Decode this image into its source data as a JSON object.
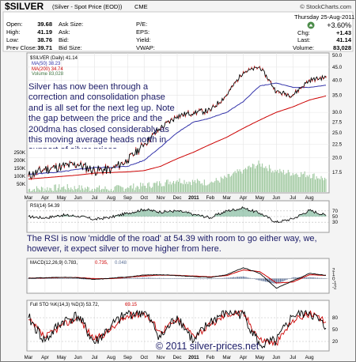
{
  "header": {
    "symbol_title": "$SILVER",
    "symbol_desc": "(Silver - Spot Price (EOD))",
    "exchange": "CME",
    "brand": "© StockCharts.com",
    "date": "Thursday  25-Aug-2011",
    "change_pct": "+3.60%",
    "quote_labels": {
      "open": "Open:",
      "high": "High:",
      "low": "Low:",
      "prev_close": "Prev Close:",
      "ask_size": "Ask Size:",
      "ask": "Ask:",
      "bid": "Bid:",
      "bid_size": "Bid Size:",
      "pe": "P/E:",
      "eps": "EPS:",
      "yield": "Yield:",
      "vwap": "VWAP:",
      "chg": "Chg:",
      "last": "Last:",
      "volume": "Volume:"
    },
    "quote_values": {
      "open": "39.68",
      "high": "41.19",
      "low": "38.76",
      "prev_close": "39.71",
      "chg": "+1.43",
      "last": "41.14",
      "volume": "83,028"
    }
  },
  "colors": {
    "price": "#000000",
    "up_tick": "#cc0000",
    "ma50": "#3333aa",
    "ma200": "#cc0000",
    "volume": "#88bb88",
    "rsi": "#000000",
    "rsi_fill": "#66aa88",
    "macd": "#000000",
    "signal": "#cc0000",
    "histogram": "#5a6f96",
    "sto_k": "#000000",
    "sto_d": "#cc0000",
    "annotation": "#1a1a66"
  },
  "chart_data": [
    {
      "type": "line",
      "panel": "price",
      "legend": [
        "$SILVER (Daily) 41.14",
        "MA(50) 38.23",
        "MA(200) 34.74",
        "Volume 83,028"
      ],
      "x_axis_labels": [
        "Mar",
        "Apr",
        "May",
        "Jun",
        "Jul",
        "Aug",
        "Sep",
        "Oct",
        "Nov",
        "Dec",
        "2011",
        "Feb",
        "Mar",
        "Apr",
        "May",
        "Jun",
        "Jul",
        "Aug"
      ],
      "x": [
        "2010-03",
        "2010-04",
        "2010-05",
        "2010-06",
        "2010-07",
        "2010-08",
        "2010-09",
        "2010-10",
        "2010-11",
        "2010-12",
        "2011-01",
        "2011-02",
        "2011-03",
        "2011-04",
        "2011-05",
        "2011-06",
        "2011-07",
        "2011-08",
        "2011-08-25"
      ],
      "ylim": [
        15,
        50
      ],
      "y_ticks": [
        "50.0",
        "45.0",
        "40.0",
        "35.0",
        "30.0",
        "27.5",
        "25.0",
        "22.5",
        "20.0",
        "17.5"
      ],
      "volume_ticks": [
        "250K",
        "200K",
        "150K",
        "100K",
        "50K"
      ],
      "series": [
        {
          "name": "$SILVER (Daily)",
          "values": [
            17.0,
            18.0,
            18.5,
            18.8,
            17.8,
            18.0,
            19.5,
            22.5,
            26.0,
            29.0,
            30.0,
            30.5,
            35.0,
            43.0,
            45.0,
            36.0,
            35.0,
            40.0,
            41.14
          ]
        },
        {
          "name": "MA(50)",
          "values": [
            17.2,
            17.4,
            17.6,
            18.0,
            18.3,
            18.3,
            18.5,
            19.5,
            22.0,
            25.0,
            27.5,
            28.5,
            30.0,
            33.0,
            38.0,
            39.0,
            37.5,
            37.5,
            38.23
          ]
        },
        {
          "name": "MA(200)",
          "values": [
            16.5,
            16.7,
            16.9,
            17.1,
            17.4,
            17.5,
            17.6,
            17.8,
            18.5,
            19.8,
            21.0,
            22.5,
            24.0,
            26.0,
            28.0,
            30.0,
            31.5,
            33.5,
            34.74
          ]
        }
      ],
      "volume": [
        18,
        22,
        30,
        25,
        22,
        20,
        30,
        40,
        55,
        75,
        65,
        60,
        90,
        140,
        180,
        130,
        120,
        110,
        83
      ]
    },
    {
      "type": "line",
      "panel": "rsi",
      "legend": "RSI(14) 54.39",
      "ylim": [
        0,
        100
      ],
      "y_ticks": [
        "70",
        "50",
        "30"
      ],
      "values": [
        50,
        45,
        55,
        52,
        40,
        48,
        62,
        75,
        66,
        70,
        58,
        46,
        70,
        80,
        62,
        30,
        42,
        72,
        54.39
      ]
    },
    {
      "type": "line",
      "panel": "macd",
      "legend": [
        "MACD(12,26,9) 0.783, ",
        "0.735, ",
        "0.048"
      ],
      "ylim": [
        -3,
        3
      ],
      "y_ticks": [
        "2",
        "1",
        "0",
        "-1",
        "-2"
      ],
      "series": [
        {
          "name": "MACD",
          "values": [
            0.1,
            0.2,
            0.3,
            0.2,
            -0.2,
            0.1,
            0.4,
            0.8,
            0.9,
            0.7,
            0.5,
            0.3,
            0.9,
            2.5,
            1.2,
            -2.2,
            -0.5,
            1.2,
            0.78
          ]
        },
        {
          "name": "Signal",
          "values": [
            0.1,
            0.15,
            0.25,
            0.25,
            0.0,
            0.0,
            0.3,
            0.6,
            0.8,
            0.75,
            0.6,
            0.4,
            0.7,
            2.0,
            1.6,
            -1.0,
            -0.8,
            0.9,
            0.74
          ]
        }
      ],
      "histogram": [
        0.0,
        0.05,
        0.05,
        -0.05,
        -0.2,
        0.1,
        0.1,
        0.2,
        0.1,
        -0.05,
        -0.1,
        -0.1,
        0.2,
        0.5,
        -0.4,
        -1.2,
        0.3,
        0.3,
        0.05
      ]
    },
    {
      "type": "line",
      "panel": "stochastic",
      "legend": [
        "Full STO %K(14,3) %D(3) 53.72, ",
        "69.15"
      ],
      "ylim": [
        0,
        100
      ],
      "y_ticks": [
        "80",
        "50",
        "20"
      ],
      "x_axis_labels": [
        "Mar",
        "Apr",
        "May",
        "Jun",
        "Jul",
        "Aug",
        "Sep",
        "Oct",
        "Nov",
        "Dec",
        "2011",
        "Feb",
        "Mar",
        "Apr",
        "May",
        "Jun",
        "Jul",
        "Aug"
      ],
      "series": [
        {
          "name": "%K",
          "values": [
            80,
            20,
            70,
            85,
            15,
            60,
            90,
            95,
            30,
            85,
            20,
            70,
            95,
            90,
            10,
            20,
            85,
            95,
            53.72
          ]
        },
        {
          "name": "%D",
          "values": [
            75,
            30,
            60,
            80,
            25,
            50,
            85,
            92,
            45,
            75,
            35,
            60,
            90,
            92,
            25,
            15,
            75,
            90,
            69.15
          ]
        }
      ]
    }
  ],
  "annotations": {
    "price_text": "Silver has now been through a correction and consolidation phase and is all set for the next leg up. Note the gap between the price and the 200dma has closed considerably as this moving average heads north in support of silver prices.",
    "rsi_text": "The RSI is now 'middle of the road' at 54.39 with room to go either way, we, however, it expect silver to move higher from here.",
    "copyright": "© 2011 silver-prices.net"
  }
}
